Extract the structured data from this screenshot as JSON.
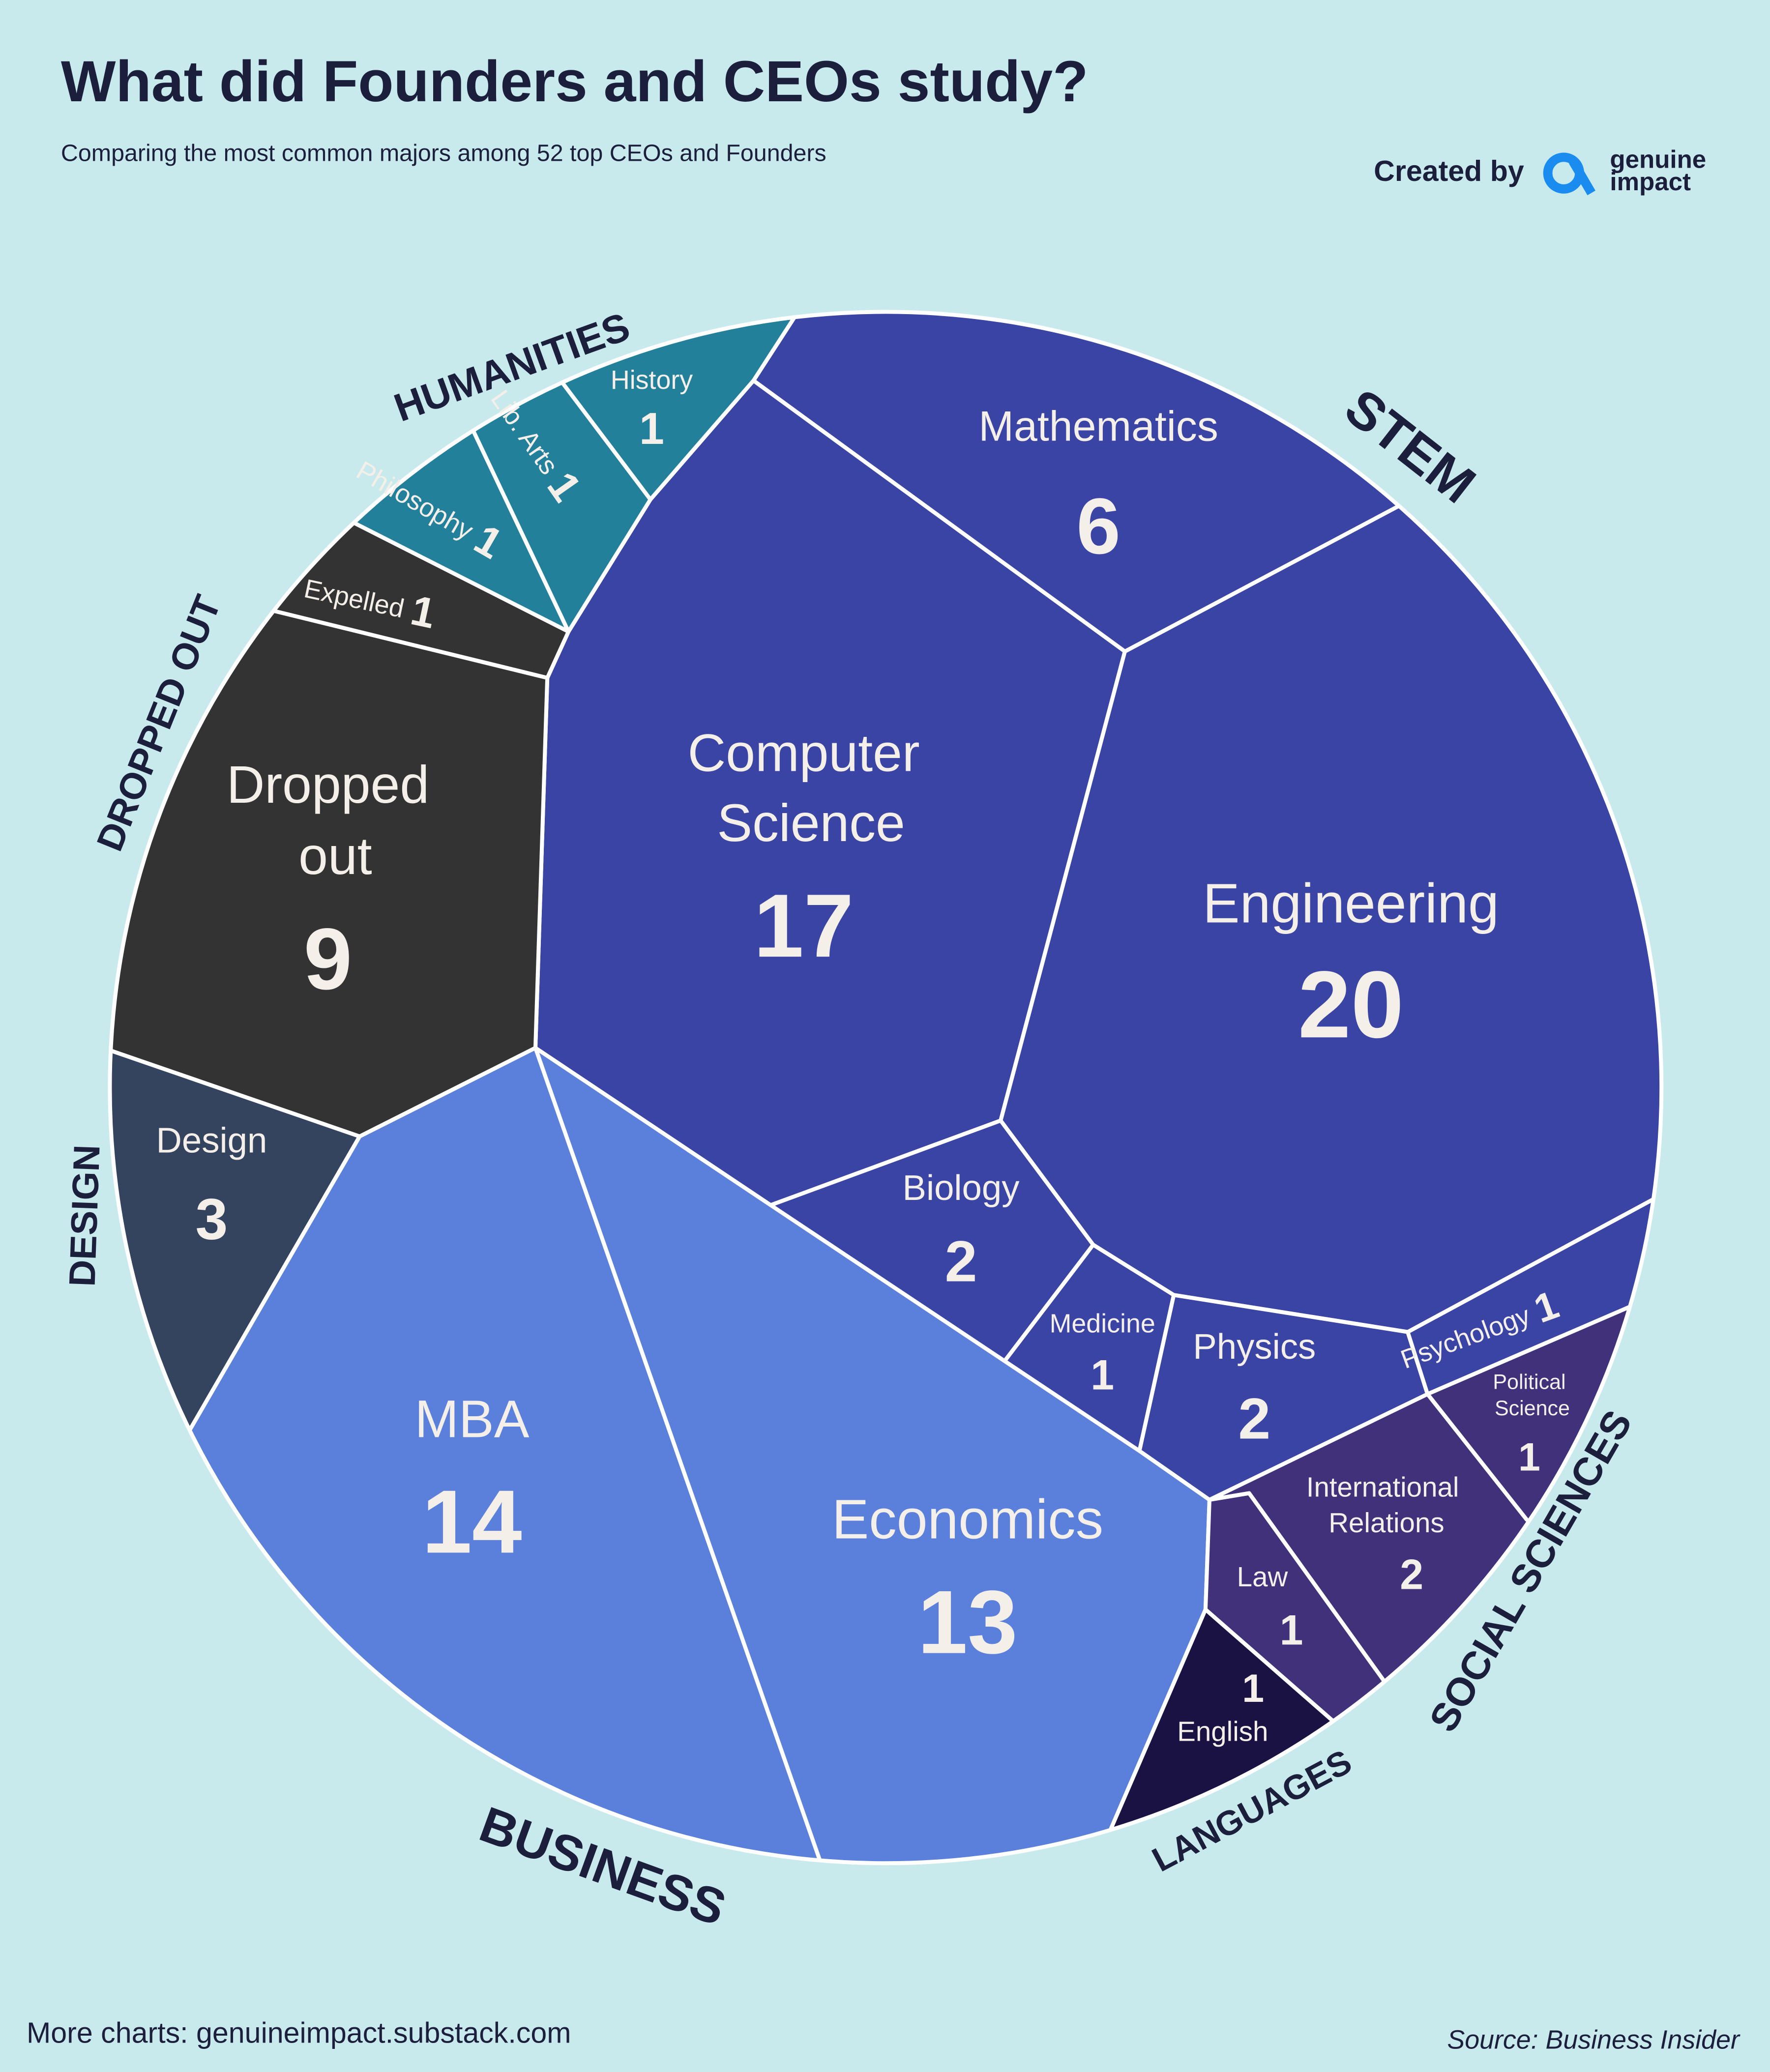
{
  "chart_data": {
    "type": "voronoi_treemap",
    "title": "What did Founders and CEOs study?",
    "subtitle": "Comparing the most common majors among 52 top CEOs and Founders",
    "groups": [
      {
        "name": "STEM",
        "color": "#3a44a4",
        "categories": [
          "Mathematics",
          "Computer Science",
          "Engineering",
          "Biology",
          "Medicine",
          "Physics",
          "Psychology"
        ],
        "values": [
          6,
          17,
          20,
          2,
          1,
          2,
          1
        ]
      },
      {
        "name": "HUMANITIES",
        "color": "#22809a",
        "categories": [
          "History",
          "Lib. Arts",
          "Philosophy"
        ],
        "values": [
          1,
          1,
          1
        ]
      },
      {
        "name": "DROPPED OUT",
        "color": "#333333",
        "categories": [
          "Expelled",
          "Dropped out"
        ],
        "values": [
          1,
          9
        ]
      },
      {
        "name": "DESIGN",
        "color": "#34445f",
        "categories": [
          "Design"
        ],
        "values": [
          3
        ]
      },
      {
        "name": "BUSINESS",
        "color": "#5b80dc",
        "categories": [
          "MBA",
          "Economics"
        ],
        "values": [
          14,
          13
        ]
      },
      {
        "name": "SOCIAL SCIENCES",
        "color": "#41307a",
        "categories": [
          "Political Science",
          "International Relations",
          "Law"
        ],
        "values": [
          1,
          2,
          1
        ]
      },
      {
        "name": "LANGUAGES",
        "color": "#1b1244",
        "categories": [
          "English"
        ],
        "values": [
          1
        ]
      }
    ]
  },
  "credit": {
    "label": "Created by",
    "brand": [
      "genuine",
      "impact"
    ]
  },
  "footer": {
    "note": "More charts: genuineimpact.substack.com",
    "source": "Source: Business Insider"
  }
}
